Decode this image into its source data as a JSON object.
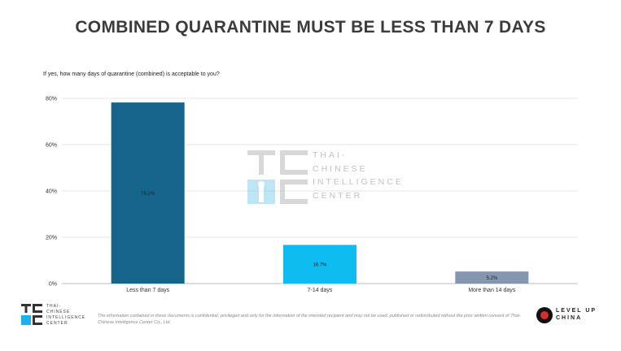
{
  "title": "COMBINED QUARANTINE MUST BE LESS THAN 7 DAYS",
  "subtitle": "If yes, how many  days of quarantine (combined) is acceptable to you?",
  "chart_data": {
    "type": "bar",
    "categories": [
      "Less than 7 days",
      "7-14 days",
      "More than 14 days"
    ],
    "values": [
      78.2,
      16.7,
      5.2
    ],
    "data_labels": [
      "78.2%",
      "16.7%",
      "5.2%"
    ],
    "bar_colors": [
      "#15648a",
      "#0fbcf2",
      "#8596b0"
    ],
    "ylim": [
      0,
      80
    ],
    "yticks": [
      "0%",
      "20%",
      "40%",
      "60%",
      "80%"
    ],
    "ytick_values": [
      0,
      20,
      40,
      60,
      80
    ],
    "grid": true,
    "xlabel": "",
    "ylabel": ""
  },
  "watermark": {
    "logo": "TC IC",
    "lines": [
      "THAI-",
      "CHINESE",
      "INTELLIGENCE",
      "CENTER"
    ]
  },
  "footer": {
    "logo_lines": [
      "THAI-",
      "CHINESE",
      "INTELLIGENCE",
      "CENTER"
    ],
    "disclaimer": "The information contained in these documents is confidential, privileged and only for the information of the intended recipient and may not be used, published or redistributed without the prior written consent of Thai-Chinese Intelligence Center Co., Ltd.",
    "partner_logo": "LEVEL UP CHINA"
  }
}
